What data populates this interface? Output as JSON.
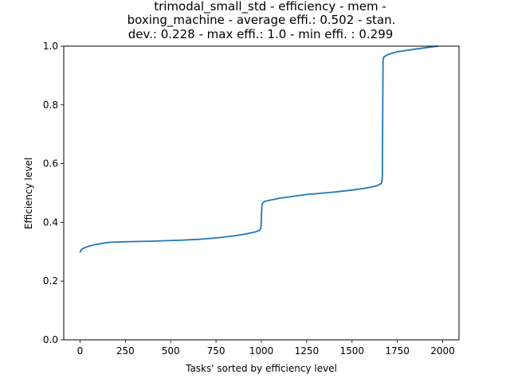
{
  "chart_data": {
    "type": "line",
    "title_lines": [
      "trimodal_small_std - efficiency - mem -",
      "boxing_machine - average effi.: 0.502 - stan.",
      "dev.: 0.228 - max effi.: 1.0 - min effi. : 0.299"
    ],
    "xlabel": "Tasks' sorted by efficiency level",
    "ylabel": "Efficiency level",
    "xlim": [
      -90,
      2090
    ],
    "ylim": [
      0.0,
      1.0
    ],
    "xticks": [
      0,
      250,
      500,
      750,
      1000,
      1250,
      1500,
      1750,
      2000
    ],
    "yticks": [
      0.0,
      0.2,
      0.4,
      0.6,
      0.8,
      1.0
    ],
    "xtick_labels": [
      "0",
      "250",
      "500",
      "750",
      "1000",
      "1250",
      "1500",
      "1750",
      "2000"
    ],
    "ytick_labels": [
      "0.0",
      "0.2",
      "0.4",
      "0.6",
      "0.8",
      "1.0"
    ],
    "grid": false,
    "series": [
      {
        "name": "efficiency",
        "color": "#1f77b4",
        "points": [
          [
            0,
            0.299
          ],
          [
            5,
            0.305
          ],
          [
            15,
            0.311
          ],
          [
            40,
            0.317
          ],
          [
            80,
            0.324
          ],
          [
            160,
            0.332
          ],
          [
            250,
            0.334
          ],
          [
            400,
            0.336
          ],
          [
            550,
            0.339
          ],
          [
            650,
            0.342
          ],
          [
            750,
            0.347
          ],
          [
            850,
            0.354
          ],
          [
            920,
            0.361
          ],
          [
            970,
            0.368
          ],
          [
            990,
            0.373
          ],
          [
            997,
            0.38
          ],
          [
            1000,
            0.41
          ],
          [
            1002,
            0.45
          ],
          [
            1005,
            0.465
          ],
          [
            1020,
            0.472
          ],
          [
            1100,
            0.482
          ],
          [
            1250,
            0.495
          ],
          [
            1400,
            0.503
          ],
          [
            1500,
            0.51
          ],
          [
            1580,
            0.517
          ],
          [
            1640,
            0.525
          ],
          [
            1662,
            0.533
          ],
          [
            1667,
            0.55
          ],
          [
            1669,
            0.75
          ],
          [
            1671,
            0.95
          ],
          [
            1675,
            0.963
          ],
          [
            1700,
            0.972
          ],
          [
            1750,
            0.981
          ],
          [
            1850,
            0.99
          ],
          [
            1920,
            0.996
          ],
          [
            1975,
            1.0
          ]
        ]
      }
    ]
  }
}
